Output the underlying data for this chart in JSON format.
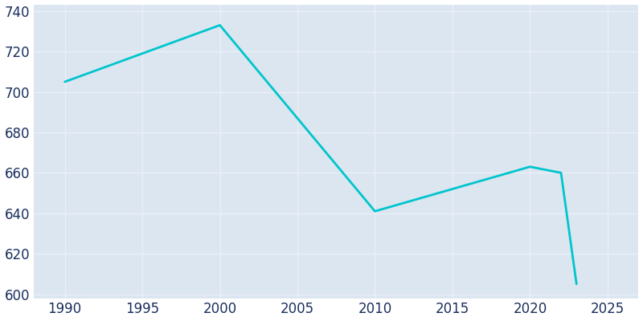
{
  "years": [
    1990,
    2000,
    2010,
    2020,
    2022,
    2023
  ],
  "population": [
    705,
    733,
    641,
    663,
    660,
    605
  ],
  "line_color": "#00c5cd",
  "plot_bg_color": "#dce6f0",
  "fig_bg_color": "#ffffff",
  "grid_color": "#eaf0f8",
  "text_color": "#1a2f5e",
  "xlim": [
    1988,
    2027
  ],
  "ylim": [
    598,
    743
  ],
  "xticks": [
    1990,
    1995,
    2000,
    2005,
    2010,
    2015,
    2020,
    2025
  ],
  "yticks": [
    600,
    620,
    640,
    660,
    680,
    700,
    720,
    740
  ],
  "linewidth": 2.0,
  "tick_fontsize": 12
}
